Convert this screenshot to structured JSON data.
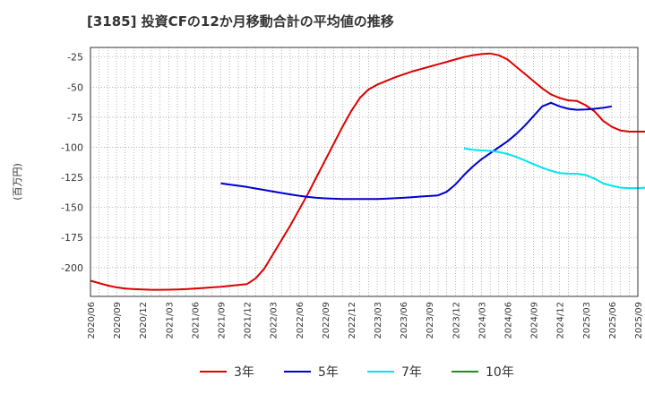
{
  "title": "[3185]  投資CFの12か月移動合計の平均値の推移",
  "chart_data": {
    "type": "line",
    "ylabel": "(百万円)",
    "ylim": [
      -224,
      -17
    ],
    "yticks": [
      -25,
      -50,
      -75,
      -100,
      -125,
      -150,
      -175,
      -200
    ],
    "ytick_labels": [
      "-25",
      "-50",
      "-75",
      "-100",
      "-125",
      "-150",
      "-175",
      "-200"
    ],
    "x_tick_labels": [
      "2020/06",
      "2020/09",
      "2020/12",
      "2021/03",
      "2021/06",
      "2021/09",
      "2021/12",
      "2022/03",
      "2022/06",
      "2022/09",
      "2022/12",
      "2023/03",
      "2023/06",
      "2023/09",
      "2023/12",
      "2024/03",
      "2024/06",
      "2024/09",
      "2024/12",
      "2025/03",
      "2025/06",
      "2025/09"
    ],
    "grid": true,
    "legend_position": "bottom",
    "series": [
      {
        "name": "3年",
        "color": "#dd0000",
        "start_index": 0,
        "values": [
          -211,
          -213,
          -215,
          -216.5,
          -217.5,
          -218,
          -218.3,
          -218.5,
          -218.5,
          -218.4,
          -218.2,
          -218,
          -217.5,
          -217,
          -216.5,
          -216,
          -215.2,
          -214.5,
          -213.8,
          -209,
          -201,
          -189,
          -177,
          -165,
          -152,
          -139,
          -125,
          -111,
          -97,
          -83,
          -70,
          -59,
          -52,
          -48,
          -45,
          -42,
          -39.5,
          -37,
          -35,
          -33,
          -31,
          -29,
          -27,
          -25,
          -23.5,
          -22.5,
          -22,
          -23.5,
          -27,
          -33,
          -39,
          -45,
          -51,
          -56,
          -59,
          -61,
          -61.5,
          -65,
          -70,
          -78,
          -83,
          -86,
          -87,
          -87,
          -87,
          -86.8,
          -86.5
        ]
      },
      {
        "name": "5年",
        "color": "#0000cc",
        "start_index": 15,
        "values": [
          -130,
          -131,
          -132,
          -133,
          -134.3,
          -135.5,
          -136.8,
          -138,
          -139.2,
          -140.3,
          -141.3,
          -142,
          -142.5,
          -142.8,
          -143,
          -143,
          -143,
          -143,
          -143,
          -142.8,
          -142.4,
          -142,
          -141.5,
          -141,
          -140.5,
          -140,
          -137,
          -131,
          -123,
          -116,
          -110,
          -105,
          -100,
          -95,
          -89,
          -82,
          -74,
          -66,
          -63,
          -66,
          -68,
          -68.8,
          -68.5,
          -68,
          -67.2,
          -66
        ]
      },
      {
        "name": "7年",
        "color": "#00e5ee",
        "start_index": 43,
        "values": [
          -101,
          -102,
          -102.6,
          -103,
          -104,
          -105.5,
          -108,
          -111,
          -114,
          -117,
          -119.5,
          -121.5,
          -122,
          -122,
          -123,
          -126,
          -130,
          -132,
          -133.5,
          -134,
          -134,
          -133.5
        ]
      },
      {
        "name": "10年",
        "color": "#228b22",
        "start_index": 0,
        "values": []
      }
    ]
  }
}
